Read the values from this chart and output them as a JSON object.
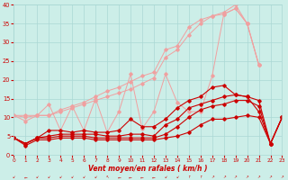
{
  "x": [
    0,
    1,
    2,
    3,
    4,
    5,
    6,
    7,
    8,
    9,
    10,
    11,
    12,
    13,
    14,
    15,
    16,
    17,
    18,
    19,
    20,
    21,
    22,
    23
  ],
  "line_pink_upper": [
    10.5,
    10.5,
    10.5,
    10.5,
    12.0,
    13.0,
    14.0,
    15.5,
    17.0,
    18.0,
    19.5,
    21.0,
    22.0,
    28.0,
    29.0,
    34.0,
    36.0,
    37.0,
    38.0,
    40.0,
    35.0,
    24.0,
    null,
    null
  ],
  "line_pink_mid": [
    10.5,
    10.0,
    10.5,
    10.5,
    11.5,
    12.5,
    13.5,
    14.5,
    15.5,
    16.5,
    17.5,
    19.0,
    20.5,
    26.0,
    28.0,
    32.0,
    35.0,
    37.0,
    37.5,
    39.0,
    35.0,
    24.0,
    null,
    null
  ],
  "line_pink_spiky": [
    10.5,
    9.0,
    10.5,
    13.5,
    6.5,
    13.0,
    6.5,
    15.0,
    6.0,
    11.5,
    21.5,
    7.0,
    11.5,
    21.5,
    14.0,
    11.5,
    11.5,
    21.0,
    37.5,
    39.0,
    35.0,
    24.0,
    null,
    null
  ],
  "line_dark_upper": [
    4.5,
    3.0,
    4.5,
    6.5,
    6.5,
    6.0,
    6.5,
    6.0,
    6.0,
    6.5,
    9.5,
    7.5,
    7.5,
    9.5,
    12.5,
    14.5,
    15.5,
    18.0,
    18.5,
    16.0,
    15.5,
    11.5,
    3.0,
    10.0
  ],
  "line_dark_mid1": [
    4.5,
    3.0,
    4.5,
    5.0,
    5.5,
    5.5,
    5.5,
    5.5,
    5.0,
    5.0,
    5.5,
    5.5,
    5.0,
    8.0,
    9.5,
    12.5,
    13.5,
    14.5,
    15.5,
    16.0,
    15.5,
    14.5,
    3.0,
    10.0
  ],
  "line_dark_low": [
    4.5,
    3.0,
    4.5,
    4.5,
    5.0,
    5.0,
    5.0,
    4.5,
    4.5,
    4.5,
    4.5,
    4.5,
    4.5,
    5.5,
    7.5,
    10.0,
    12.0,
    13.0,
    13.5,
    14.5,
    14.5,
    13.0,
    3.0,
    10.0
  ],
  "line_dark_flat": [
    4.5,
    2.5,
    4.0,
    4.0,
    4.5,
    4.5,
    4.5,
    4.0,
    4.0,
    4.0,
    4.0,
    4.0,
    4.0,
    4.5,
    5.0,
    6.0,
    8.0,
    9.5,
    9.5,
    10.0,
    10.5,
    10.0,
    3.0,
    10.0
  ],
  "xlabel": "Vent moyen/en rafales ( km/h )",
  "ylim": [
    0,
    40
  ],
  "xlim": [
    0,
    23
  ],
  "yticks": [
    0,
    5,
    10,
    15,
    20,
    25,
    30,
    35,
    40
  ],
  "xticks": [
    0,
    1,
    2,
    3,
    4,
    5,
    6,
    7,
    8,
    9,
    10,
    11,
    12,
    13,
    14,
    15,
    16,
    17,
    18,
    19,
    20,
    21,
    22,
    23
  ],
  "bg_color": "#cceee8",
  "grid_color": "#aad8d4",
  "light_red": "#f0a0a0",
  "dark_red": "#cc0000"
}
